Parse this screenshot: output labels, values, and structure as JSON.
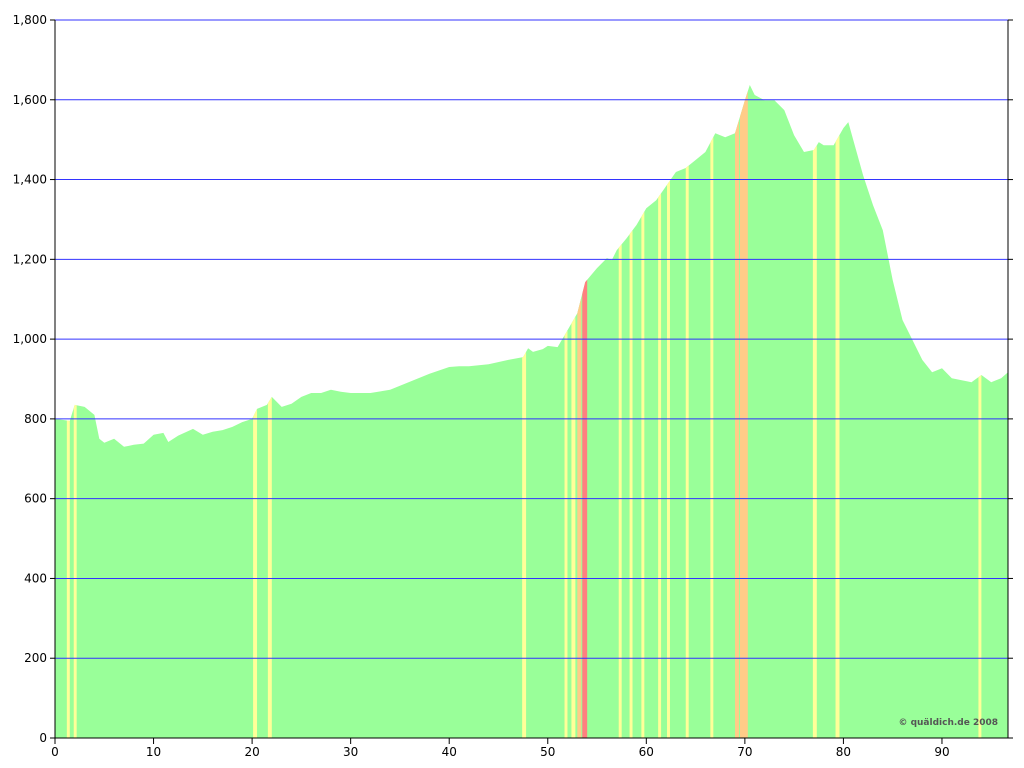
{
  "chart_data": {
    "type": "area",
    "color": "#99ff99",
    "grid_color": "#3333ff",
    "grid": true,
    "watermark": "© quäldich.de 2008",
    "xlim": [
      0,
      96.7
    ],
    "xticks": [
      0,
      10,
      20,
      30,
      40,
      50,
      60,
      70,
      80,
      90
    ],
    "ylim": [
      0,
      1800
    ],
    "yticks": [
      0,
      200,
      400,
      600,
      800,
      {
        "value": 1000,
        "label": "1,000"
      },
      {
        "value": 1200,
        "label": "1,200"
      },
      {
        "value": 1400,
        "label": "1,400"
      },
      {
        "value": 1600,
        "label": "1,600"
      },
      {
        "value": 1800,
        "label": "1,800"
      }
    ],
    "x": [
      0,
      1.5,
      2,
      3,
      4,
      4.5,
      5,
      6,
      7,
      8,
      9,
      10,
      11,
      11.5,
      12.5,
      14,
      15,
      16,
      17,
      18,
      19,
      20,
      20.5,
      21.5,
      22,
      23,
      24,
      25,
      26,
      27,
      28,
      29,
      30,
      32,
      34,
      36,
      38,
      40,
      41,
      42,
      44,
      46,
      47.5,
      48,
      48.5,
      49.5,
      50,
      51,
      52,
      53,
      53.8,
      55,
      56,
      56.5,
      57,
      58,
      59,
      60,
      61,
      62,
      63,
      64,
      65,
      66,
      67,
      68,
      69,
      70,
      70.5,
      71,
      72,
      73,
      74,
      75,
      76,
      77,
      77.5,
      78,
      79,
      80,
      80.5,
      81,
      82,
      83,
      84,
      85,
      86,
      87,
      88,
      89,
      90,
      91,
      92,
      93,
      94,
      95,
      96,
      96.7
    ],
    "values": [
      800,
      795,
      835,
      830,
      810,
      750,
      740,
      750,
      730,
      735,
      738,
      760,
      765,
      742,
      758,
      775,
      760,
      768,
      772,
      780,
      792,
      800,
      825,
      835,
      855,
      830,
      838,
      855,
      865,
      865,
      873,
      868,
      865,
      865,
      873,
      893,
      913,
      930,
      932,
      932,
      937,
      948,
      955,
      977,
      968,
      975,
      983,
      980,
      1022,
      1065,
      1143,
      1178,
      1203,
      1198,
      1223,
      1253,
      1286,
      1328,
      1348,
      1383,
      1419,
      1429,
      1449,
      1469,
      1516,
      1506,
      1516,
      1599,
      1637,
      1612,
      1599,
      1599,
      1574,
      1511,
      1469,
      1474,
      1494,
      1486,
      1486,
      1529,
      1544,
      1499,
      1411,
      1336,
      1273,
      1148,
      1048,
      998,
      948,
      917,
      927,
      902,
      897,
      892,
      910,
      892,
      902,
      917
    ],
    "bands": [
      {
        "x0": 1.2,
        "x1": 1.5,
        "color": "#ffff99"
      },
      {
        "x0": 1.9,
        "x1": 2.2,
        "color": "#ffff99"
      },
      {
        "x0": 20.1,
        "x1": 20.5,
        "color": "#ffff99"
      },
      {
        "x0": 21.6,
        "x1": 22,
        "color": "#ffff99"
      },
      {
        "x0": 47.4,
        "x1": 47.8,
        "color": "#ffff99"
      },
      {
        "x0": 51.7,
        "x1": 52,
        "color": "#ffff99"
      },
      {
        "x0": 52.4,
        "x1": 52.8,
        "color": "#ffff99"
      },
      {
        "x0": 53,
        "x1": 53.4,
        "color": "#ffcc88"
      },
      {
        "x0": 53.5,
        "x1": 54,
        "color": "#ff8080"
      },
      {
        "x0": 57.2,
        "x1": 57.5,
        "color": "#ffff99"
      },
      {
        "x0": 58.3,
        "x1": 58.6,
        "color": "#ffff99"
      },
      {
        "x0": 59.5,
        "x1": 59.8,
        "color": "#ffff99"
      },
      {
        "x0": 61.2,
        "x1": 61.5,
        "color": "#ffff99"
      },
      {
        "x0": 62.1,
        "x1": 62.4,
        "color": "#ffff99"
      },
      {
        "x0": 64,
        "x1": 64.3,
        "color": "#ffff99"
      },
      {
        "x0": 66.5,
        "x1": 66.8,
        "color": "#ffff99"
      },
      {
        "x0": 69,
        "x1": 69.4,
        "color": "#ffcc88"
      },
      {
        "x0": 69.5,
        "x1": 70.3,
        "color": "#ffcc88"
      },
      {
        "x0": 76.9,
        "x1": 77.3,
        "color": "#ffff99"
      },
      {
        "x0": 79.2,
        "x1": 79.6,
        "color": "#ffff99"
      },
      {
        "x0": 93.7,
        "x1": 94,
        "color": "#ffff99"
      }
    ]
  }
}
